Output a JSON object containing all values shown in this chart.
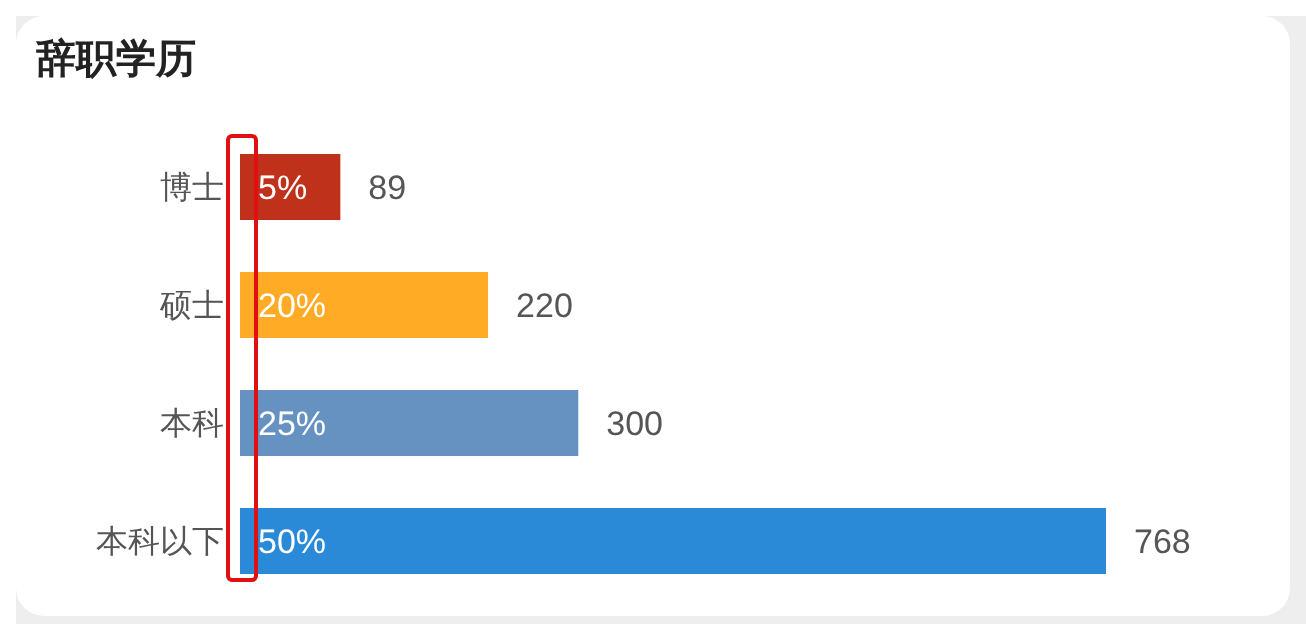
{
  "chart_data": {
    "type": "bar",
    "orientation": "horizontal",
    "title": "辞职学历",
    "categories": [
      "博士",
      "硕士",
      "本科",
      "本科以下"
    ],
    "values": [
      89,
      220,
      300,
      768
    ],
    "colors": [
      "#c0311b",
      "#ffab26",
      "#6592c0",
      "#2a8ad8"
    ],
    "data_labels": true,
    "annotations": [
      "5%",
      "20%",
      "25%",
      "50%"
    ]
  }
}
